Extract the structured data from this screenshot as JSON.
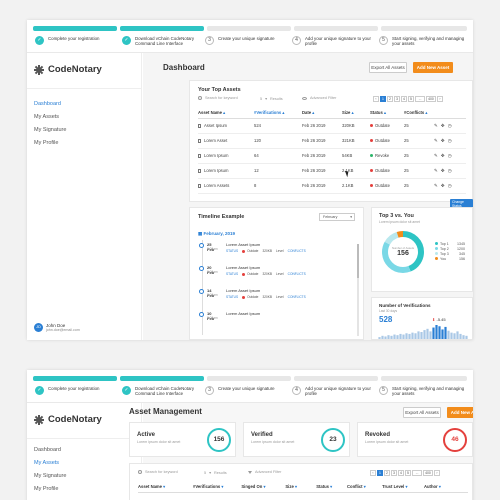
{
  "steps": [
    {
      "num": "✓",
      "label": "Complete your registration",
      "done": true
    },
    {
      "num": "✓",
      "label": "Download vChain CodeNotary Command Line Interface",
      "done": true
    },
    {
      "num": "3",
      "label": "Create your unique signature",
      "done": false
    },
    {
      "num": "4",
      "label": "Add your unique signature to your profile",
      "done": false
    },
    {
      "num": "5",
      "label": "Start signing, verifying and managing your assets",
      "done": false
    }
  ],
  "app": {
    "name": "CodeNotary"
  },
  "sidebar": {
    "items": [
      {
        "label": "Dashboard"
      },
      {
        "label": "My Assets"
      },
      {
        "label": "My Signature"
      },
      {
        "label": "My Profile"
      }
    ],
    "user": {
      "initials": "JD",
      "name": "John Doe",
      "email": "john.doe@email.com"
    }
  },
  "dashboard": {
    "title": "Dashboard",
    "export_label": "Export All Assets",
    "add_label": "Add New Asset",
    "top_assets": {
      "title": "Your Top Assets",
      "search_placeholder": "Search for keyword",
      "results_count": "5",
      "results_label": "Results",
      "filter_label": "Advanced Filter",
      "pages": [
        "‹",
        "1",
        "2",
        "3",
        "4",
        "5",
        "...",
        "400",
        "›"
      ],
      "columns": [
        "Asset Name",
        "#Verifications",
        "Date",
        "Size",
        "Status",
        "#Conflicts"
      ],
      "rows": [
        {
          "name": "Asset Ipsum",
          "verifications": "524",
          "date": "Feb 26 2019",
          "size": "320KB",
          "status": "Outdate",
          "status_color": "red",
          "conflicts": "25"
        },
        {
          "name": "Lorem Asset",
          "verifications": "120",
          "date": "Feb 26 2019",
          "size": "321KB",
          "status": "Outdate",
          "status_color": "red",
          "conflicts": "25"
        },
        {
          "name": "Lorem Ipsum",
          "verifications": "64",
          "date": "Feb 26 2019",
          "size": "54KB",
          "status": "Revoke",
          "status_color": "green",
          "conflicts": "25"
        },
        {
          "name": "Lorem Ipsum",
          "verifications": "12",
          "date": "Feb 26 2019",
          "size": "2.1KB",
          "status": "Outdate",
          "status_color": "red",
          "conflicts": "25"
        },
        {
          "name": "Lorem Assets",
          "verifications": "8",
          "date": "Feb 26 2019",
          "size": "2.1KB",
          "status": "Outdate",
          "status_color": "red",
          "conflicts": "25"
        }
      ],
      "tooltip": "Change Status"
    },
    "timeline": {
      "title": "Timeline Example",
      "filter": "February",
      "month": "February, 2019",
      "items": [
        {
          "day": "25 Feb",
          "time": "3:00am",
          "title": "Lorem Asset Ipsum",
          "status": "STATUS",
          "state": "Outdate",
          "size": "320KB",
          "level": "Level",
          "conflicts": "CONFLICTS"
        },
        {
          "day": "20 Feb",
          "time": "3:00am",
          "title": "Lorem Asset Ipsum",
          "status": "STATUS",
          "state": "Outdate",
          "size": "320KB",
          "level": "Level",
          "conflicts": "CONFLICTS"
        },
        {
          "day": "14 Feb",
          "time": "3:00am",
          "title": "Lorem Asset Ipsum",
          "status": "STATUS",
          "state": "Outdate",
          "size": "320KB",
          "level": "Level",
          "conflicts": "CONFLICTS"
        },
        {
          "day": "10 Feb",
          "time": "3:00am",
          "title": "Lorem Asset Ipsum",
          "status": "",
          "state": "",
          "size": "",
          "level": "",
          "conflicts": ""
        }
      ]
    },
    "top3": {
      "title": "Top 3 vs. You",
      "subtitle": "Lorem ipsum dolor sit amet",
      "center_value": "156",
      "center_label": "Number of Assets",
      "legend": [
        {
          "label": "Top 1",
          "value": "1345",
          "color": "#2ec4c4"
        },
        {
          "label": "Top 2",
          "value": "1200",
          "color": "#7ad8e6"
        },
        {
          "label": "Top 3",
          "value": "345",
          "color": "#b9e8ee"
        },
        {
          "label": "You",
          "value": "156",
          "color": "#f28c1b"
        }
      ],
      "donut_fracs": [
        0.44,
        0.39,
        0.12,
        0.05
      ]
    },
    "verifications": {
      "title": "Number of Verifications",
      "subtitle": "Last 30 days",
      "value": "528",
      "change": "-5.45",
      "bars": [
        3,
        5,
        4,
        6,
        5,
        7,
        6,
        8,
        7,
        9,
        8,
        10,
        9,
        12,
        11,
        14,
        16,
        12,
        18,
        22,
        20,
        15,
        19,
        13,
        10,
        9,
        12,
        8,
        6,
        5
      ]
    }
  },
  "asset_mgmt": {
    "title": "Asset Management",
    "export_label": "Export All Assets",
    "add_label": "Add New Asset",
    "stats": [
      {
        "title": "Active",
        "subtitle": "Lorem ipsum dolor sit amet",
        "value": "156"
      },
      {
        "title": "Verified",
        "subtitle": "Lorem ipsum dolor sit amet",
        "value": "23"
      },
      {
        "title": "Revoked",
        "subtitle": "Lorem ipsum dolor sit amet",
        "value": "46"
      }
    ],
    "search_placeholder": "Search for keyword",
    "results_count": "5",
    "results_label": "Results",
    "filter_label": "Advanced Filter",
    "pages": [
      "‹",
      "1",
      "2",
      "3",
      "4",
      "5",
      "...",
      "400",
      "›"
    ],
    "columns": [
      "Asset Name",
      "#Verifications",
      "Singed On",
      "Size",
      "Status",
      "Conflict",
      "Trust Level",
      "Author"
    ]
  },
  "colors": {
    "accent": "#2ec4c4",
    "brand": "#2a7fd4",
    "orange": "#f28c1b",
    "red": "#e4403d",
    "green": "#2cb56a"
  }
}
